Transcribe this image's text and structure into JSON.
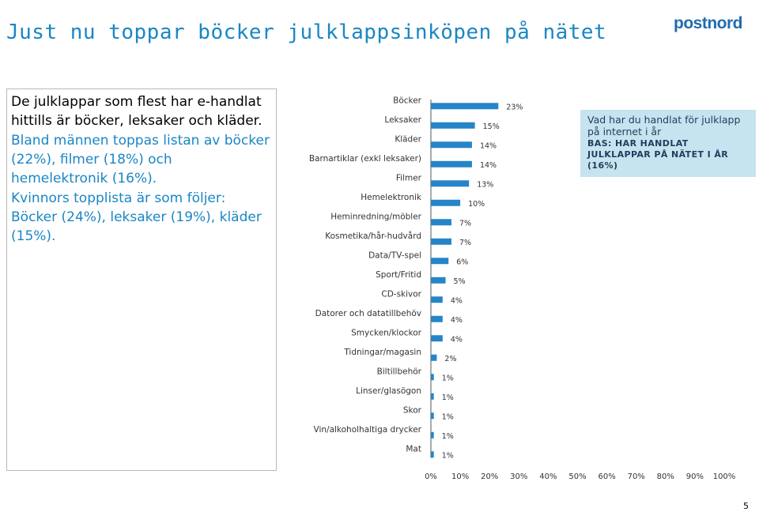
{
  "title": "Just nu toppar böcker julklappsinköpen på nätet",
  "logo": "postnord",
  "summary": {
    "p1": "De julklappar som flest har e-handlat hittills är böcker, leksaker och kläder.",
    "p2": "Bland männen toppas listan av böcker (22%), filmer (18%) och hemelektronik (16%).",
    "p3": "Kvinnors topplista är som följer: Böcker (24%), leksaker (19%), kläder (15%)."
  },
  "callout": {
    "question": "Vad har du handlat för julklapp på internet i år",
    "base": "BAS: HAR HANDLAT JULKLAPPAR PÅ NÄTET I ÅR (16%)"
  },
  "page_number": "5",
  "colors": {
    "bar": "#2585c8",
    "title": "#1a86c4",
    "logo": "#1f6bb0",
    "callout_bg": "#c6e4ef"
  },
  "chart_data": {
    "type": "bar",
    "orientation": "horizontal",
    "categories": [
      "Böcker",
      "Leksaker",
      "Kläder",
      "Barnartiklar (exkl leksaker)",
      "Filmer",
      "Hemelektronik",
      "Heminredning/möbler",
      "Kosmetika/hår-hudvård",
      "Data/TV-spel",
      "Sport/Fritid",
      "CD-skivor",
      "Datorer och datatillbehöv",
      "Smycken/klockor",
      "Tidningar/magasin",
      "Biltillbehör",
      "Linser/glasögon",
      "Skor",
      "Vin/alkoholhaltiga drycker",
      "Mat"
    ],
    "values": [
      23,
      15,
      14,
      14,
      13,
      10,
      7,
      7,
      6,
      5,
      4,
      4,
      4,
      2,
      1,
      1,
      1,
      1,
      1
    ],
    "data_labels": [
      "23%",
      "15%",
      "14%",
      "14%",
      "13%",
      "10%",
      "7%",
      "7%",
      "6%",
      "5%",
      "4%",
      "4%",
      "4%",
      "2%",
      "1%",
      "1%",
      "1%",
      "1%",
      "1%"
    ],
    "xlim": [
      0,
      100
    ],
    "x_ticks": [
      "0%",
      "10%",
      "20%",
      "30%",
      "40%",
      "50%",
      "60%",
      "70%",
      "80%",
      "90%",
      "100%"
    ],
    "grid": false
  }
}
